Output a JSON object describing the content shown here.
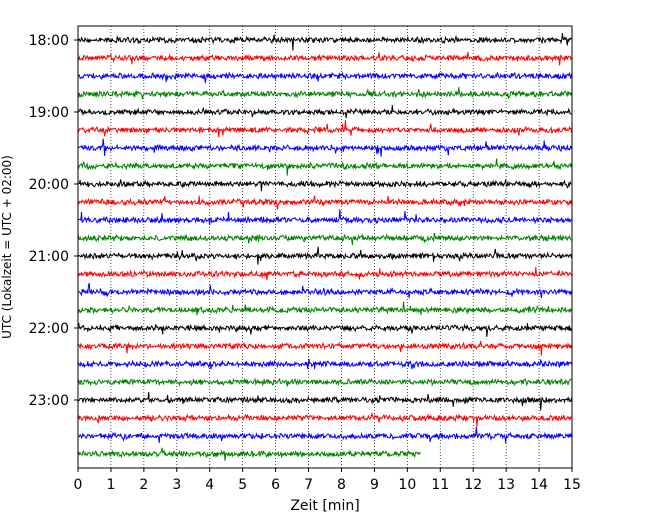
{
  "chart_data": {
    "type": "line",
    "subtype": "helicorder",
    "xlabel": "Zeit  [min]",
    "ylabel": "UTC (Lokalzeit = UTC + 02:00)",
    "xlim": [
      0,
      15
    ],
    "x_ticks": [
      "0",
      "1",
      "2",
      "3",
      "4",
      "5",
      "6",
      "7",
      "8",
      "9",
      "10",
      "11",
      "12",
      "13",
      "14",
      "15"
    ],
    "y_ticks": [
      "18:00",
      "19:00",
      "20:00",
      "21:00",
      "22:00",
      "23:00"
    ],
    "minutes_per_trace": 15,
    "trace_colors_cycle": [
      "#000000",
      "#ff0000",
      "#0000ff",
      "#008000"
    ],
    "x_grid": "dotted vertical lines at each minute",
    "traces": [
      {
        "start": "18:00",
        "color": "#000000",
        "end_minute": 15
      },
      {
        "start": "18:15",
        "color": "#ff0000",
        "end_minute": 15
      },
      {
        "start": "18:30",
        "color": "#0000ff",
        "end_minute": 15
      },
      {
        "start": "18:45",
        "color": "#008000",
        "end_minute": 15
      },
      {
        "start": "19:00",
        "color": "#000000",
        "end_minute": 15
      },
      {
        "start": "19:15",
        "color": "#ff0000",
        "end_minute": 15
      },
      {
        "start": "19:30",
        "color": "#0000ff",
        "end_minute": 15
      },
      {
        "start": "19:45",
        "color": "#008000",
        "end_minute": 15
      },
      {
        "start": "20:00",
        "color": "#000000",
        "end_minute": 15
      },
      {
        "start": "20:15",
        "color": "#ff0000",
        "end_minute": 15
      },
      {
        "start": "20:30",
        "color": "#0000ff",
        "end_minute": 15
      },
      {
        "start": "20:45",
        "color": "#008000",
        "end_minute": 15
      },
      {
        "start": "21:00",
        "color": "#000000",
        "end_minute": 15
      },
      {
        "start": "21:15",
        "color": "#ff0000",
        "end_minute": 15
      },
      {
        "start": "21:30",
        "color": "#0000ff",
        "end_minute": 15
      },
      {
        "start": "21:45",
        "color": "#008000",
        "end_minute": 15
      },
      {
        "start": "22:00",
        "color": "#000000",
        "end_minute": 15
      },
      {
        "start": "22:15",
        "color": "#ff0000",
        "end_minute": 15
      },
      {
        "start": "22:30",
        "color": "#0000ff",
        "end_minute": 15
      },
      {
        "start": "22:45",
        "color": "#008000",
        "end_minute": 15
      },
      {
        "start": "23:00",
        "color": "#000000",
        "end_minute": 15
      },
      {
        "start": "23:15",
        "color": "#ff0000",
        "end_minute": 15
      },
      {
        "start": "23:30",
        "color": "#0000ff",
        "end_minute": 15
      },
      {
        "start": "23:45",
        "color": "#008000",
        "end_minute": 10.4
      }
    ]
  }
}
